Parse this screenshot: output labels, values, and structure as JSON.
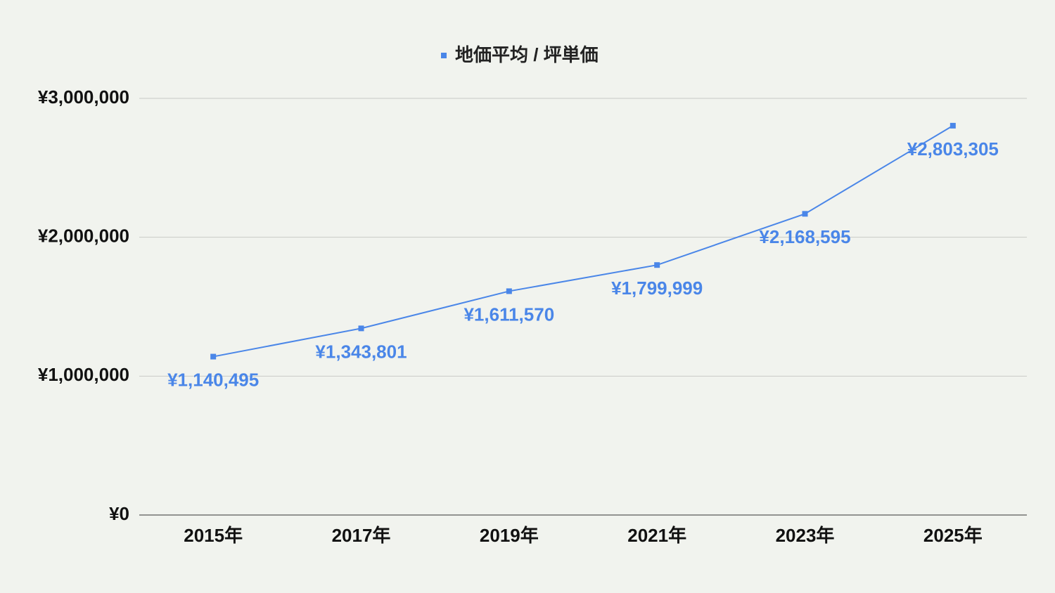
{
  "chart_data": {
    "type": "line",
    "categories": [
      "2015年",
      "2017年",
      "2019年",
      "2021年",
      "2023年",
      "2025年"
    ],
    "series": [
      {
        "name": "地価平均 / 坪単価",
        "color": "#4a86e8",
        "values": [
          1140495,
          1343801,
          1611570,
          1799999,
          2168595,
          2803305
        ],
        "value_labels": [
          "¥1,140,495",
          "¥1,343,801",
          "¥1,611,570",
          "¥1,799,999",
          "¥2,168,595",
          "¥2,803,305"
        ]
      }
    ],
    "ylim": [
      0,
      3000000
    ],
    "yticks": [
      {
        "value": 0,
        "label": "¥0"
      },
      {
        "value": 1000000,
        "label": "¥1,000,000"
      },
      {
        "value": 2000000,
        "label": "¥2,000,000"
      },
      {
        "value": 3000000,
        "label": "¥3,000,000"
      }
    ],
    "grid": true,
    "legend": "top"
  }
}
